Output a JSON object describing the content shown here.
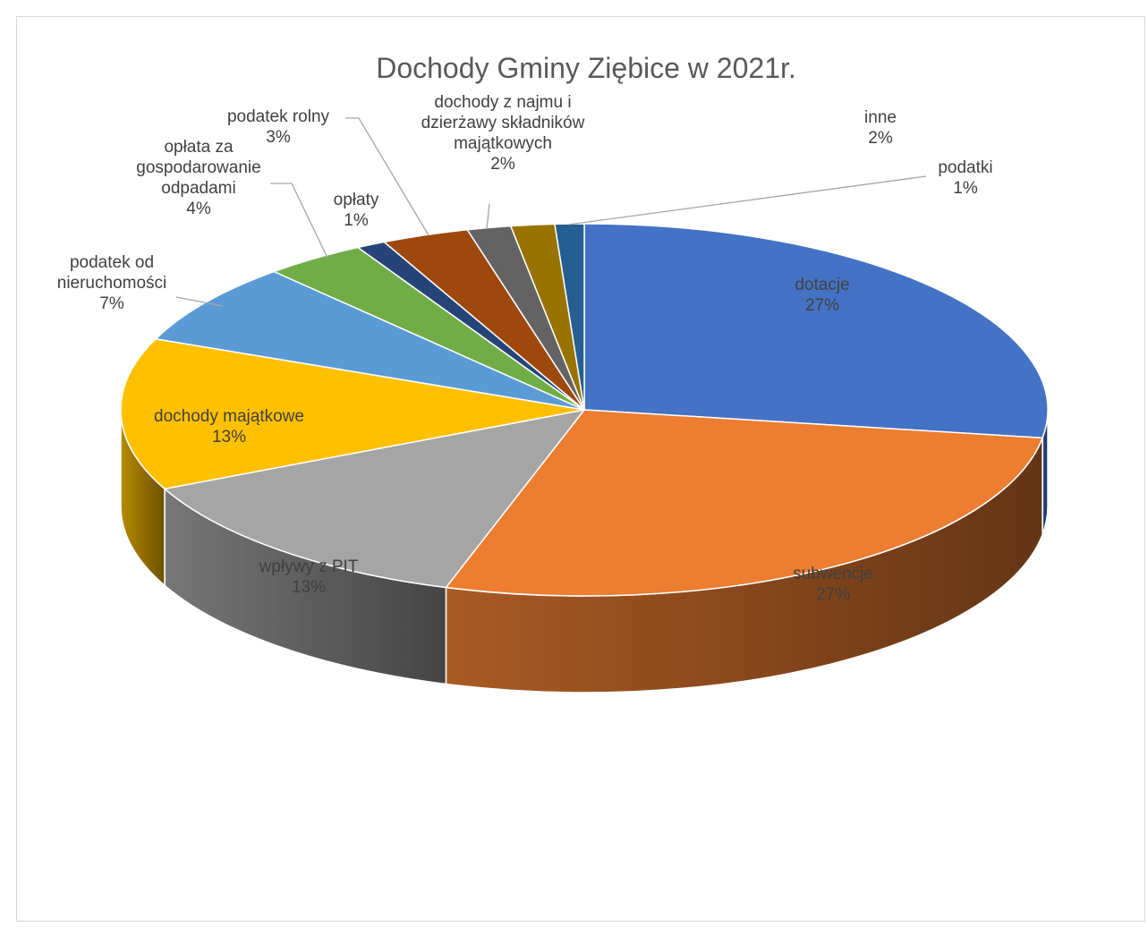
{
  "chart_data": {
    "type": "pie",
    "title": "Dochody Gminy Ziębice w 2021r.",
    "slices": [
      {
        "label": "dotacje",
        "pct_label": "27%",
        "value": 27,
        "color": "#4472C4"
      },
      {
        "label": "subwencje",
        "pct_label": "27%",
        "value": 27,
        "color": "#ED7D31"
      },
      {
        "label": "wpływy z PIT",
        "pct_label": "13%",
        "value": 13,
        "color": "#A5A5A5"
      },
      {
        "label": "dochody majątkowe",
        "pct_label": "13%",
        "value": 13,
        "color": "#FFC000"
      },
      {
        "label": "podatek od nieruchomości",
        "pct_label": "7%",
        "value": 7,
        "color": "#5B9BD5"
      },
      {
        "label": "opłata za gospodarowanie odpadami",
        "pct_label": "4%",
        "value": 3.5,
        "color": "#70AD47"
      },
      {
        "label": "opłaty",
        "pct_label": "1%",
        "value": 1,
        "color": "#264478"
      },
      {
        "label": "podatek rolny",
        "pct_label": "3%",
        "value": 3,
        "color": "#9E480E"
      },
      {
        "label": "dochody z najmu i dzierżawy składników majątkowych",
        "pct_label": "2%",
        "value": 1.5,
        "color": "#636363"
      },
      {
        "label": "inne",
        "pct_label": "2%",
        "value": 1.5,
        "color": "#997300"
      },
      {
        "label": "podatki",
        "pct_label": "1%",
        "value": 1,
        "color": "#255E91"
      }
    ]
  }
}
